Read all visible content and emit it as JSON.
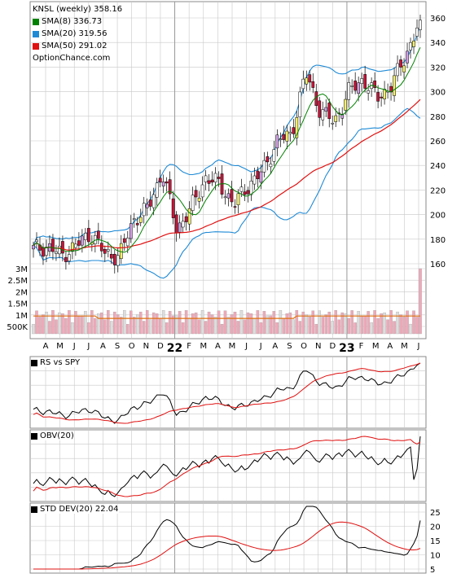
{
  "legend": {
    "title": "KNSL (weekly) 358.16",
    "items": [
      {
        "label": "SMA(8) 336.73",
        "color": "#008000"
      },
      {
        "label": "SMA(20) 319.56",
        "color": "#1e8ad6"
      },
      {
        "label": "SMA(50) 291.02",
        "color": "#e01010"
      }
    ],
    "source": "OptionChance.com"
  },
  "price_axis_ticks": [
    "360",
    "340",
    "320",
    "300",
    "280",
    "260",
    "240",
    "220",
    "200",
    "180",
    "160"
  ],
  "volume_axis_ticks": [
    "3M",
    "2.5M",
    "2M",
    "1.5M",
    "1M",
    "500K"
  ],
  "month_labels": [
    "A",
    "M",
    "J",
    "J",
    "A",
    "S",
    "O",
    "N",
    "D",
    "22",
    "F",
    "M",
    "A",
    "M",
    "J",
    "J",
    "A",
    "S",
    "O",
    "N",
    "D",
    "23",
    "F",
    "M",
    "A",
    "M",
    "J"
  ],
  "panels": {
    "rs": {
      "label": "RS vs SPY"
    },
    "obv": {
      "label": "OBV(20)"
    },
    "std": {
      "label": "STD DEV(20) 22.04",
      "ticks": [
        "25",
        "20",
        "15",
        "10",
        "5"
      ]
    }
  },
  "chart_data": {
    "type": "candlestick",
    "ticker": "KNSL",
    "interval": "weekly",
    "last_close": 358.16,
    "ylim": [
      150,
      365
    ],
    "x_range": [
      "2021-03-29",
      "2023-06-30"
    ],
    "sma": {
      "sma8": 336.73,
      "sma20": 319.56,
      "sma50": 291.02
    },
    "price_path": [
      [
        "2021-04",
        172
      ],
      [
        "2021-05",
        174
      ],
      [
        "2021-06",
        167
      ],
      [
        "2021-07",
        175
      ],
      [
        "2021-08",
        185
      ],
      [
        "2021-09",
        168
      ],
      [
        "2021-10",
        166
      ],
      [
        "2021-11",
        196
      ],
      [
        "2021-12",
        205
      ],
      [
        "2022-01",
        235
      ],
      [
        "2022-02",
        188
      ],
      [
        "2022-03",
        205
      ],
      [
        "2022-04",
        230
      ],
      [
        "2022-05",
        225
      ],
      [
        "2022-06",
        208
      ],
      [
        "2022-07",
        224
      ],
      [
        "2022-08",
        235
      ],
      [
        "2022-09",
        260
      ],
      [
        "2022-10",
        265
      ],
      [
        "2022-11",
        315
      ],
      [
        "2022-12",
        285
      ],
      [
        "2022-12-28",
        275
      ],
      [
        "2023-01",
        300
      ],
      [
        "2023-02",
        310
      ],
      [
        "2023-03",
        295
      ],
      [
        "2023-04",
        305
      ],
      [
        "2023-05",
        330
      ],
      [
        "2023-06",
        358
      ]
    ],
    "volume_avg": "about 0.9M",
    "std_dev_last": 22.04
  },
  "colors": {
    "up": "#f4f06a",
    "down": "#c6163a",
    "candle_up_alt": "#ffffff",
    "candle_purple": "#d0a0e0",
    "sma8": "#008000",
    "sma20": "#1e8ad6",
    "sma50": "#e01010",
    "volume": "#f0a8b8",
    "volume_ma": "#e07010",
    "grid": "#c8c8c8"
  }
}
